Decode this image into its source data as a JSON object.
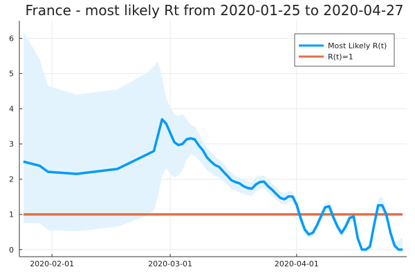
{
  "chart_data": {
    "type": "line",
    "title": "France - most likely Rt from 2020-01-25 to 2020-04-27",
    "xlabel": "",
    "ylabel": "",
    "xlim": [
      "2020-01-24",
      "2020-04-28"
    ],
    "ylim": [
      -0.2,
      6.5
    ],
    "yticks": [
      0,
      1,
      2,
      3,
      4,
      5,
      6
    ],
    "xticks": [
      "2020-02-01",
      "2020-03-01",
      "2020-04-01"
    ],
    "grid": true,
    "legend_position": "top-right",
    "colors": {
      "most_likely": "#009af9",
      "reference": "#e26f46",
      "band": "#e3f3fe"
    },
    "series": [
      {
        "name": "Most Likely R(t)",
        "x": [
          "2020-01-25",
          "2020-01-29",
          "2020-01-31",
          "2020-02-07",
          "2020-02-17",
          "2020-02-26",
          "2020-02-28",
          "2020-02-29",
          "2020-03-02",
          "2020-03-03",
          "2020-03-04",
          "2020-03-05",
          "2020-03-06",
          "2020-03-07",
          "2020-03-08",
          "2020-03-09",
          "2020-03-10",
          "2020-03-11",
          "2020-03-12",
          "2020-03-13",
          "2020-03-14",
          "2020-03-15",
          "2020-03-16",
          "2020-03-17",
          "2020-03-18",
          "2020-03-19",
          "2020-03-20",
          "2020-03-21",
          "2020-03-22",
          "2020-03-23",
          "2020-03-24",
          "2020-03-25",
          "2020-03-26",
          "2020-03-27",
          "2020-03-28",
          "2020-03-29",
          "2020-03-30",
          "2020-03-31",
          "2020-04-01",
          "2020-04-02",
          "2020-04-03",
          "2020-04-04",
          "2020-04-05",
          "2020-04-06",
          "2020-04-07",
          "2020-04-08",
          "2020-04-09",
          "2020-04-10",
          "2020-04-11",
          "2020-04-12",
          "2020-04-13",
          "2020-04-14",
          "2020-04-15",
          "2020-04-16",
          "2020-04-17",
          "2020-04-18",
          "2020-04-19",
          "2020-04-20",
          "2020-04-21",
          "2020-04-22",
          "2020-04-23",
          "2020-04-24",
          "2020-04-25",
          "2020-04-26",
          "2020-04-27"
        ],
        "y": [
          2.5,
          2.38,
          2.21,
          2.15,
          2.29,
          2.8,
          3.7,
          3.58,
          3.05,
          2.97,
          3.0,
          3.13,
          3.16,
          3.13,
          2.96,
          2.82,
          2.62,
          2.5,
          2.4,
          2.35,
          2.22,
          2.1,
          1.97,
          1.92,
          1.88,
          1.8,
          1.75,
          1.73,
          1.85,
          1.92,
          1.93,
          1.8,
          1.7,
          1.58,
          1.47,
          1.43,
          1.51,
          1.51,
          1.28,
          0.89,
          0.57,
          0.43,
          0.48,
          0.69,
          0.95,
          1.2,
          1.23,
          0.92,
          0.66,
          0.47,
          0.65,
          0.9,
          0.94,
          0.32,
          0.0,
          0.0,
          0.09,
          0.69,
          1.26,
          1.26,
          1.0,
          0.49,
          0.12,
          0.0,
          0.0
        ]
      },
      {
        "name": "R(t)=1",
        "x": [
          "2020-01-25",
          "2020-04-27"
        ],
        "y": [
          1.0,
          1.0
        ]
      }
    ],
    "band": {
      "x": [
        "2020-01-25",
        "2020-01-29",
        "2020-01-31",
        "2020-02-07",
        "2020-02-17",
        "2020-02-24",
        "2020-02-26",
        "2020-02-27",
        "2020-02-28",
        "2020-02-29",
        "2020-03-01",
        "2020-03-02",
        "2020-03-03",
        "2020-03-04",
        "2020-03-05",
        "2020-03-06",
        "2020-03-07",
        "2020-03-08",
        "2020-03-09",
        "2020-03-10",
        "2020-03-11",
        "2020-03-12",
        "2020-03-13",
        "2020-03-14",
        "2020-03-15",
        "2020-03-16",
        "2020-03-17",
        "2020-03-18",
        "2020-03-19",
        "2020-03-20",
        "2020-03-21",
        "2020-03-22",
        "2020-03-23",
        "2020-03-24",
        "2020-03-25",
        "2020-03-26",
        "2020-03-27",
        "2020-03-28",
        "2020-03-29",
        "2020-03-30",
        "2020-03-31",
        "2020-04-01",
        "2020-04-02",
        "2020-04-03",
        "2020-04-04",
        "2020-04-05",
        "2020-04-06",
        "2020-04-07",
        "2020-04-08",
        "2020-04-09",
        "2020-04-10",
        "2020-04-11",
        "2020-04-12",
        "2020-04-13",
        "2020-04-14",
        "2020-04-15",
        "2020-04-16",
        "2020-04-17",
        "2020-04-18",
        "2020-04-19",
        "2020-04-20",
        "2020-04-21",
        "2020-04-22",
        "2020-04-23",
        "2020-04-24",
        "2020-04-25",
        "2020-04-26",
        "2020-04-27"
      ],
      "upper": [
        6.2,
        5.4,
        4.65,
        4.4,
        4.55,
        5.0,
        5.2,
        5.35,
        4.9,
        4.3,
        4.05,
        3.85,
        3.8,
        3.85,
        3.7,
        3.55,
        3.5,
        3.3,
        3.1,
        2.9,
        2.78,
        2.65,
        2.55,
        2.48,
        2.3,
        2.2,
        2.1,
        2.05,
        2.0,
        1.95,
        1.9,
        2.05,
        2.1,
        2.1,
        2.0,
        1.88,
        1.78,
        1.66,
        1.6,
        1.65,
        1.65,
        1.45,
        1.05,
        0.7,
        0.55,
        0.58,
        0.8,
        1.08,
        1.32,
        1.38,
        1.08,
        0.8,
        0.6,
        0.8,
        1.02,
        1.08,
        0.45,
        0.1,
        0.08,
        0.2,
        0.8,
        1.45,
        1.5,
        1.15,
        0.62,
        0.25,
        0.25,
        0.35
      ],
      "lower": [
        0.75,
        0.75,
        0.55,
        0.52,
        0.65,
        0.95,
        1.1,
        1.5,
        2.1,
        2.3,
        2.15,
        2.05,
        2.1,
        2.25,
        2.55,
        2.7,
        2.65,
        2.55,
        2.4,
        2.25,
        2.18,
        2.1,
        2.05,
        1.95,
        1.85,
        1.72,
        1.68,
        1.62,
        1.58,
        1.55,
        1.53,
        1.65,
        1.72,
        1.75,
        1.62,
        1.52,
        1.42,
        1.32,
        1.27,
        1.35,
        1.35,
        1.12,
        0.75,
        0.45,
        0.33,
        0.38,
        0.58,
        0.82,
        1.05,
        1.08,
        0.8,
        0.54,
        0.36,
        0.52,
        0.78,
        0.8,
        0.22,
        -0.03,
        -0.03,
        0.0,
        0.58,
        1.08,
        1.08,
        0.85,
        0.36,
        0.02,
        -0.03,
        -0.03
      ]
    }
  }
}
